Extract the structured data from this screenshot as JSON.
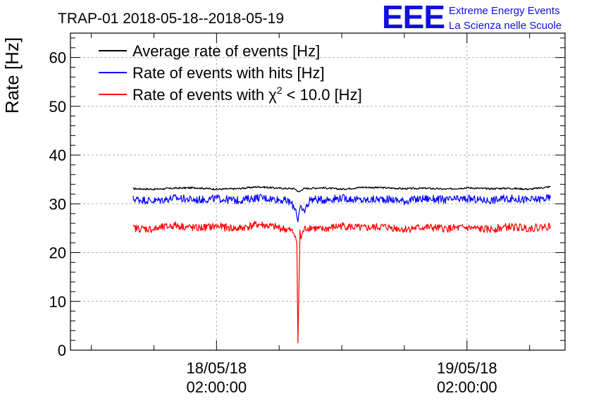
{
  "header": {
    "title": "TRAP-01 2018-05-18--2018-05-19",
    "logo_letters": "EEE",
    "logo_line1": "Extreme Energy Events",
    "logo_line2": "La Scienza nelle Scuole"
  },
  "chart_data": {
    "type": "line",
    "title": "TRAP-01 2018-05-18--2018-05-19",
    "xlabel": "",
    "ylabel": "Rate [Hz]",
    "x_unit": "hours since 2018-05-18 00:00:00",
    "xlim": [
      -12.0,
      35.4
    ],
    "ylim": [
      0,
      65
    ],
    "y_ticks": [
      0,
      10,
      20,
      30,
      40,
      50,
      60
    ],
    "x_ticks": [
      {
        "x": 2.0,
        "date": "18/05/18",
        "time": "02:00:00"
      },
      {
        "x": 26.0,
        "date": "19/05/18",
        "time": "02:00:00"
      }
    ],
    "grid": true,
    "legend_position": "top-left",
    "series": [
      {
        "name": "Average rate of events [Hz]",
        "legend_text": "Average rate of events [Hz]",
        "color": "#000000",
        "x": [
          -6.0,
          -4.0,
          -2.0,
          0.0,
          2.0,
          4.0,
          6.0,
          8.0,
          9.5,
          9.9,
          10.3,
          12.0,
          14.0,
          16.0,
          18.0,
          20.0,
          22.0,
          24.0,
          26.0,
          28.0,
          30.0,
          32.0,
          34.0
        ],
        "y": [
          33.1,
          33.0,
          33.2,
          33.3,
          33.0,
          33.1,
          33.5,
          33.2,
          33.1,
          32.4,
          33.1,
          33.3,
          33.0,
          33.4,
          33.3,
          33.1,
          33.2,
          33.0,
          33.3,
          33.1,
          33.2,
          33.0,
          33.5
        ]
      },
      {
        "name": "Rate of events with hits [Hz]",
        "legend_text": "Rate of events with hits [Hz]",
        "color": "#0000ff",
        "x": [
          -6.0,
          -4.0,
          -2.0,
          0.0,
          2.0,
          4.0,
          6.0,
          8.0,
          9.0,
          9.6,
          9.8,
          10.0,
          10.4,
          11.0,
          12.0,
          14.0,
          16.0,
          18.0,
          20.0,
          22.0,
          24.0,
          26.0,
          28.0,
          30.0,
          32.0,
          34.0
        ],
        "y": [
          31.0,
          30.6,
          31.2,
          30.8,
          31.1,
          30.7,
          31.3,
          30.9,
          30.4,
          29.0,
          26.5,
          29.0,
          28.5,
          31.0,
          30.8,
          31.2,
          30.7,
          31.0,
          30.6,
          31.1,
          30.8,
          31.0,
          30.7,
          31.1,
          30.8,
          31.2
        ]
      },
      {
        "name": "Rate of events with chi2 < 10.0 [Hz]",
        "legend_text": "Rate of events with",
        "legend_symbol": "χ",
        "legend_sup": "2",
        "legend_rest": "< 10.0 [Hz]",
        "color": "#ff0000",
        "x": [
          -6.0,
          -4.0,
          -2.0,
          0.0,
          2.0,
          4.0,
          6.0,
          8.0,
          9.0,
          9.5,
          9.7,
          9.8,
          9.9,
          10.0,
          10.1,
          10.4,
          11.0,
          12.0,
          14.0,
          16.0,
          18.0,
          20.0,
          22.0,
          24.0,
          26.0,
          28.0,
          30.0,
          32.0,
          34.0
        ],
        "y": [
          25.0,
          24.8,
          25.6,
          25.0,
          25.4,
          24.9,
          25.8,
          25.1,
          24.6,
          24.0,
          22.0,
          1.5,
          13.0,
          24.0,
          23.0,
          24.8,
          25.2,
          24.7,
          25.5,
          25.0,
          25.3,
          24.8,
          25.2,
          24.9,
          25.1,
          24.7,
          25.3,
          25.0,
          25.4
        ]
      }
    ]
  }
}
